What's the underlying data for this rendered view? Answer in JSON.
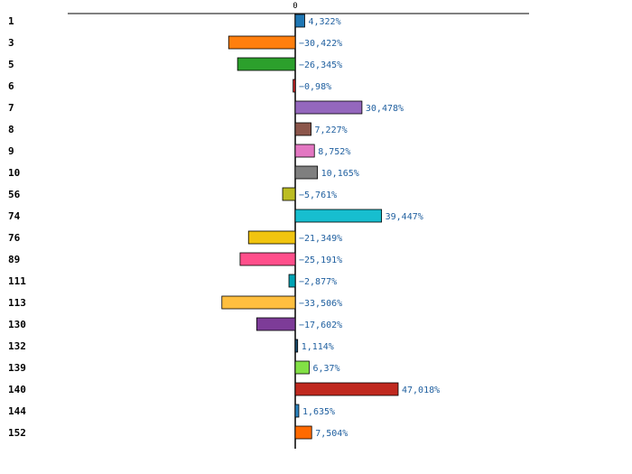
{
  "chart_data": {
    "type": "bar",
    "orientation": "horizontal",
    "title": "",
    "xlabel": "",
    "ylabel": "",
    "xlim": [
      -50,
      50
    ],
    "grid": false,
    "legend": "none",
    "x_axis_position": "top",
    "x_ticks": [
      {
        "value": 0,
        "label": "0"
      }
    ],
    "categories": [
      "1",
      "3",
      "5",
      "6",
      "7",
      "8",
      "9",
      "10",
      "56",
      "74",
      "76",
      "89",
      "111",
      "113",
      "130",
      "132",
      "139",
      "140",
      "144",
      "152"
    ],
    "values": [
      4.322,
      -30.422,
      -26.345,
      -0.98,
      30.478,
      7.227,
      8.752,
      10.165,
      -5.761,
      39.447,
      -21.349,
      -25.191,
      -2.877,
      -33.506,
      -17.602,
      1.114,
      6.37,
      47.018,
      1.635,
      7.504
    ],
    "value_labels": [
      "4,322%",
      "−30,422%",
      "−26,345%",
      "−0,98%",
      "30,478%",
      "7,227%",
      "8,752%",
      "10,165%",
      "−5,761%",
      "39,447%",
      "−21,349%",
      "−25,191%",
      "−2,877%",
      "−33,506%",
      "−17,602%",
      "1,114%",
      "6,37%",
      "47,018%",
      "1,635%",
      "7,504%"
    ],
    "colors": [
      "#1f77b4",
      "#ff7f0e",
      "#2ca02c",
      "#d62728",
      "#9467bd",
      "#8c564b",
      "#e377c2",
      "#7f7f7f",
      "#bcbd22",
      "#17becf",
      "#f1c40f",
      "#ff4f8b",
      "#00a3b4",
      "#ffbf3f",
      "#7d3c98",
      "#1b4f72",
      "#82e045",
      "#c0291f",
      "#2e86c1",
      "#ff6a00"
    ],
    "value_label_color": "#1f5f9f"
  }
}
